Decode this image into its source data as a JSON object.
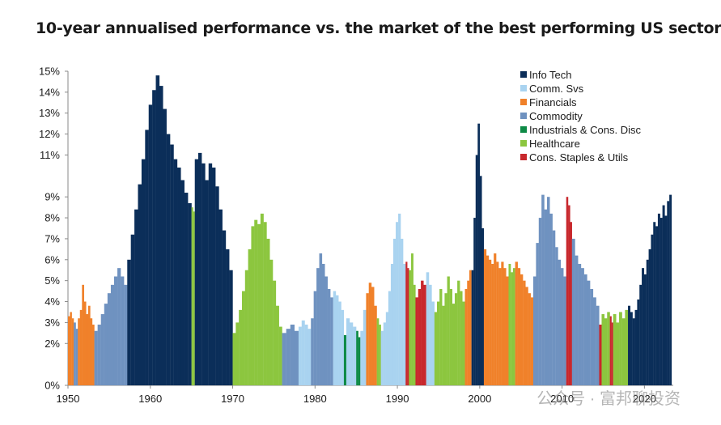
{
  "chart_data": {
    "type": "bar",
    "title": "10-year annualised performance vs. the market of the best performing US sector",
    "xlabel": "",
    "ylabel": "",
    "xlim": [
      1950,
      2023.5
    ],
    "ylim": [
      0,
      15
    ],
    "x_ticks": [
      1950,
      1960,
      1970,
      1980,
      1990,
      2000,
      2010,
      2020
    ],
    "y_ticks": [
      "0%",
      "2%",
      "3%",
      "4%",
      "5%",
      "6%",
      "7%",
      "8%",
      "9%",
      "11%",
      "12%",
      "13%",
      "14%",
      "15%"
    ],
    "legend_position": "top-right",
    "series": [
      {
        "name": "Info Tech",
        "color": "#0b2e59"
      },
      {
        "name": "Comm. Svs",
        "color": "#a9d3f0"
      },
      {
        "name": "Financials",
        "color": "#f0812a"
      },
      {
        "name": "Commodity",
        "color": "#6f92c0"
      },
      {
        "name": "Industrials & Cons. Disc",
        "color": "#0e8a46"
      },
      {
        "name": "Healthcare",
        "color": "#8cc63f"
      },
      {
        "name": "Cons. Staples & Utils",
        "color": "#c8282d"
      }
    ],
    "segments": [
      {
        "sector": "Financials",
        "x0": 1950.0,
        "x1": 1950.7,
        "values": [
          3.3,
          3.5,
          3.2
        ]
      },
      {
        "sector": "Commodity",
        "x0": 1950.7,
        "x1": 1951.2,
        "values": [
          3.0,
          2.7
        ]
      },
      {
        "sector": "Financials",
        "x0": 1951.2,
        "x1": 1953.2,
        "values": [
          3.2,
          3.6,
          4.8,
          4.0,
          3.4,
          3.8,
          3.2,
          2.9
        ]
      },
      {
        "sector": "Commodity",
        "x0": 1953.2,
        "x1": 1957.2,
        "values": [
          2.6,
          2.9,
          3.4,
          3.9,
          4.4,
          4.8,
          5.2,
          5.6,
          5.2,
          4.8
        ]
      },
      {
        "sector": "Info Tech",
        "x0": 1957.2,
        "x1": 1965.0,
        "values": [
          6.0,
          7.2,
          8.4,
          9.6,
          10.8,
          12.2,
          13.4,
          14.1,
          14.8,
          14.3,
          13.2,
          12.0,
          11.5,
          10.8,
          10.4,
          9.8,
          9.2,
          8.7
        ]
      },
      {
        "sector": "Healthcare",
        "x0": 1965.0,
        "x1": 1965.4,
        "values": [
          8.5,
          8.3
        ]
      },
      {
        "sector": "Info Tech",
        "x0": 1965.4,
        "x1": 1970.0,
        "values": [
          10.8,
          11.1,
          10.6,
          9.8,
          10.6,
          10.4,
          9.5,
          8.4,
          7.4,
          6.5,
          5.5
        ]
      },
      {
        "sector": "Healthcare",
        "x0": 1970.0,
        "x1": 1976.0,
        "values": [
          2.5,
          3.0,
          3.6,
          4.5,
          5.5,
          6.5,
          7.6,
          7.9,
          7.7,
          8.2,
          7.8,
          7.0,
          6.0,
          5.0,
          3.8,
          2.8
        ]
      },
      {
        "sector": "Commodity",
        "x0": 1976.0,
        "x1": 1978.0,
        "values": [
          2.5,
          2.7,
          2.9,
          2.6
        ]
      },
      {
        "sector": "Comm. Svs",
        "x0": 1978.0,
        "x1": 1979.5,
        "values": [
          2.8,
          3.1,
          2.9,
          2.7
        ]
      },
      {
        "sector": "Commodity",
        "x0": 1979.5,
        "x1": 1982.2,
        "values": [
          3.2,
          4.5,
          5.6,
          6.3,
          5.8,
          5.2,
          4.6,
          4.2
        ]
      },
      {
        "sector": "Comm. Svs",
        "x0": 1982.2,
        "x1": 1983.5,
        "values": [
          4.5,
          4.3,
          4.0,
          3.6
        ]
      },
      {
        "sector": "Industrials & Cons. Disc",
        "x0": 1983.5,
        "x1": 1983.8,
        "values": [
          2.4
        ]
      },
      {
        "sector": "Comm. Svs",
        "x0": 1983.8,
        "x1": 1985.0,
        "values": [
          3.2,
          3.0,
          2.8
        ]
      },
      {
        "sector": "Industrials & Cons. Disc",
        "x0": 1985.0,
        "x1": 1985.5,
        "values": [
          2.6,
          2.3
        ]
      },
      {
        "sector": "Comm. Svs",
        "x0": 1985.5,
        "x1": 1986.2,
        "values": [
          2.6,
          3.6
        ]
      },
      {
        "sector": "Financials",
        "x0": 1986.2,
        "x1": 1987.5,
        "values": [
          4.4,
          4.9,
          4.7,
          3.8
        ]
      },
      {
        "sector": "Healthcare",
        "x0": 1987.5,
        "x1": 1988.0,
        "values": [
          3.2,
          2.9
        ]
      },
      {
        "sector": "Comm. Svs",
        "x0": 1988.0,
        "x1": 1991.0,
        "values": [
          2.6,
          3.0,
          3.5,
          4.5,
          5.8,
          7.0,
          7.8,
          8.2,
          7.0,
          5.8
        ]
      },
      {
        "sector": "Cons. Staples & Utils",
        "x0": 1991.0,
        "x1": 1991.4,
        "values": [
          5.9,
          5.6
        ]
      },
      {
        "sector": "Healthcare",
        "x0": 1991.4,
        "x1": 1992.2,
        "values": [
          5.5,
          6.3,
          4.8
        ]
      },
      {
        "sector": "Cons. Staples & Utils",
        "x0": 1992.2,
        "x1": 1993.5,
        "values": [
          4.2,
          4.6,
          5.0,
          4.8
        ]
      },
      {
        "sector": "Comm. Svs",
        "x0": 1993.5,
        "x1": 1994.5,
        "values": [
          5.4,
          4.8,
          4.0
        ]
      },
      {
        "sector": "Healthcare",
        "x0": 1994.5,
        "x1": 1998.2,
        "values": [
          3.5,
          4.0,
          4.6,
          3.8,
          4.4,
          5.2,
          4.6,
          3.9,
          4.4,
          5.0,
          4.5,
          4.0
        ]
      },
      {
        "sector": "Financials",
        "x0": 1998.2,
        "x1": 1999.0,
        "values": [
          4.6,
          5.0,
          5.5
        ]
      },
      {
        "sector": "Info Tech",
        "x0": 1999.0,
        "x1": 2000.5,
        "values": [
          5.5,
          8.0,
          11.0,
          12.5,
          10.0,
          7.5
        ]
      },
      {
        "sector": "Financials",
        "x0": 2000.5,
        "x1": 2003.5,
        "values": [
          6.5,
          6.2,
          6.0,
          5.8,
          6.3,
          5.9,
          5.6,
          5.9,
          5.6,
          5.2
        ]
      },
      {
        "sector": "Healthcare",
        "x0": 2003.5,
        "x1": 2004.3,
        "values": [
          5.8,
          5.4,
          5.6
        ]
      },
      {
        "sector": "Financials",
        "x0": 2004.3,
        "x1": 2006.5,
        "values": [
          5.9,
          5.6,
          5.3,
          5.0,
          4.7,
          4.4,
          4.2
        ]
      },
      {
        "sector": "Commodity",
        "x0": 2006.5,
        "x1": 2010.5,
        "values": [
          5.2,
          6.8,
          8.0,
          9.1,
          8.4,
          9.0,
          8.2,
          7.4,
          6.6,
          6.0,
          5.6,
          5.2
        ]
      },
      {
        "sector": "Cons. Staples & Utils",
        "x0": 2010.5,
        "x1": 2011.2,
        "values": [
          9.0,
          8.6,
          7.8
        ]
      },
      {
        "sector": "Commodity",
        "x0": 2011.2,
        "x1": 2014.5,
        "values": [
          7.0,
          6.2,
          5.8,
          5.6,
          5.3,
          5.0,
          4.6,
          4.2,
          3.8
        ]
      },
      {
        "sector": "Cons. Staples & Utils",
        "x0": 2014.5,
        "x1": 2014.8,
        "values": [
          2.9
        ]
      },
      {
        "sector": "Healthcare",
        "x0": 2014.8,
        "x1": 2015.8,
        "values": [
          3.4,
          3.2,
          3.5
        ]
      },
      {
        "sector": "Cons. Staples & Utils",
        "x0": 2015.8,
        "x1": 2016.2,
        "values": [
          3.3,
          3.0
        ]
      },
      {
        "sector": "Healthcare",
        "x0": 2016.2,
        "x1": 2018.0,
        "values": [
          3.4,
          3.0,
          3.5,
          3.2,
          3.6
        ]
      },
      {
        "sector": "Info Tech",
        "x0": 2018.0,
        "x1": 2023.3,
        "values": [
          3.8,
          3.5,
          3.2,
          3.6,
          4.1,
          4.8,
          5.6,
          5.3,
          6.0,
          6.5,
          7.2,
          7.8,
          7.6,
          8.2,
          8.0,
          8.6,
          8.1,
          8.8,
          9.1
        ]
      }
    ]
  },
  "watermark": {
    "text": "公众号 · 富邦聊投资"
  }
}
